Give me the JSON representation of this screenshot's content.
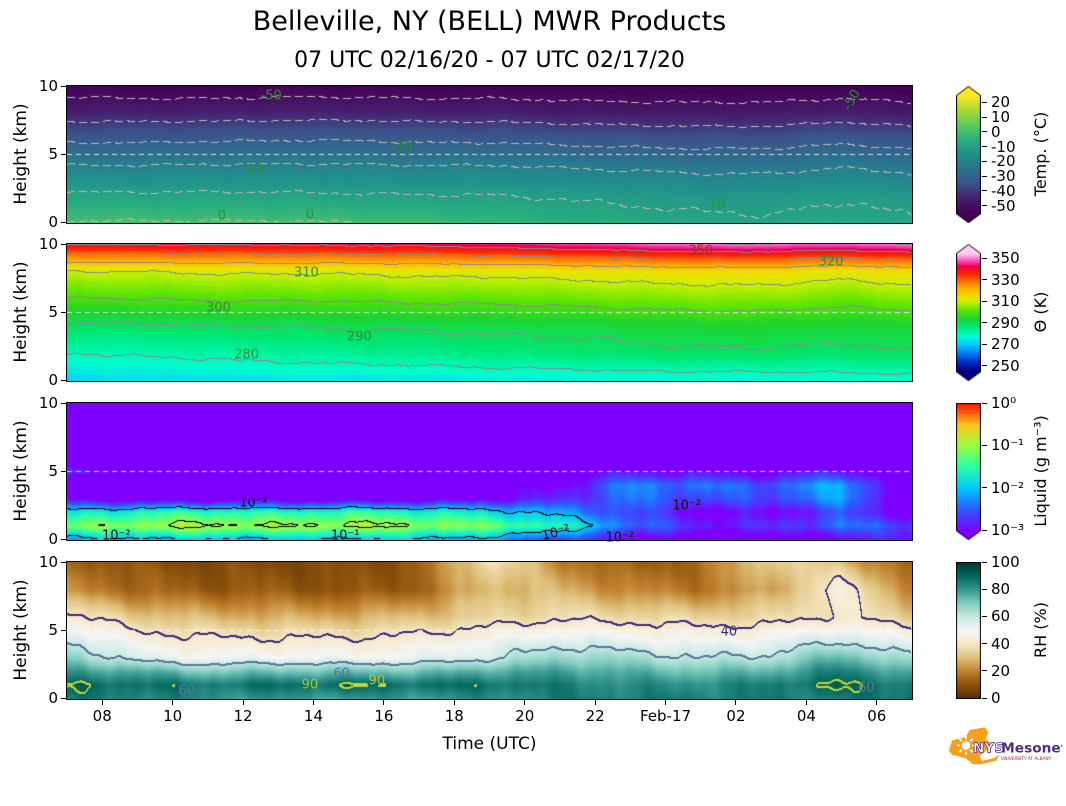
{
  "title": "Belleville, NY (BELL) MWR Products",
  "subtitle": "07 UTC 02/16/20 - 07 UTC 02/17/20",
  "xlabel": "Time (UTC)",
  "ylabel": "Height (km)",
  "logo": {
    "nys": "NYS",
    "mesonet": "Mesonet",
    "sub": "UNIVERSITY AT ALBANY"
  },
  "axis": {
    "hour_start": 7,
    "hour_end": 31,
    "yticks": [
      {
        "v": 0,
        "label": "0"
      },
      {
        "v": 5,
        "label": "5"
      },
      {
        "v": 10,
        "label": "10"
      }
    ],
    "xticks": [
      {
        "hour": 8,
        "label": "08"
      },
      {
        "hour": 10,
        "label": "10"
      },
      {
        "hour": 12,
        "label": "12"
      },
      {
        "hour": 14,
        "label": "14"
      },
      {
        "hour": 16,
        "label": "16"
      },
      {
        "hour": 18,
        "label": "18"
      },
      {
        "hour": 20,
        "label": "20"
      },
      {
        "hour": 22,
        "label": "22"
      },
      {
        "hour": 24,
        "label": "Feb-17"
      },
      {
        "hour": 26,
        "label": "02"
      },
      {
        "hour": 28,
        "label": "04"
      },
      {
        "hour": 30,
        "label": "06"
      }
    ]
  },
  "chart_data": [
    {
      "name": "temperature",
      "type": "heatmap",
      "vmin": -55,
      "vmax": 25,
      "colormap": "viridis",
      "dashed_height_km": 5,
      "colorbar": {
        "label": "Temp. (°C)",
        "extend_top": true,
        "extend_bottom": true,
        "ticks": [
          {
            "v": 20,
            "label": "20"
          },
          {
            "v": 10,
            "label": "10"
          },
          {
            "v": 0,
            "label": "0"
          },
          {
            "v": -10,
            "label": "-10"
          },
          {
            "v": -20,
            "label": "-20"
          },
          {
            "v": -30,
            "label": "-30"
          },
          {
            "v": -40,
            "label": "-40"
          },
          {
            "v": -50,
            "label": "-50"
          }
        ]
      },
      "grid": {
        "hours": [
          7,
          9,
          11,
          13,
          15,
          17,
          19,
          21,
          23,
          25,
          27,
          29,
          31
        ],
        "heights": [
          0,
          2,
          4,
          6,
          8,
          10
        ],
        "values": [
          [
            0.5,
            0.5,
            0.5,
            0.5,
            0,
            -1,
            -3,
            -5,
            -7,
            -8,
            -9,
            -7,
            -9
          ],
          [
            -9,
            -9,
            -9,
            -9,
            -9.5,
            -10,
            -10,
            -11,
            -12,
            -13,
            -13,
            -11,
            -13
          ],
          [
            -19,
            -19,
            -18.5,
            -18.5,
            -18.5,
            -19,
            -19,
            -20,
            -21,
            -22,
            -22,
            -20,
            -22
          ],
          [
            -31,
            -31,
            -30.5,
            -30,
            -30,
            -31,
            -31,
            -32,
            -33,
            -33.5,
            -33.5,
            -31.5,
            -33.5
          ],
          [
            -44,
            -44,
            -44,
            -43.5,
            -43.5,
            -44,
            -44,
            -45,
            -45.5,
            -46,
            -46,
            -44,
            -46
          ],
          [
            -54,
            -55,
            -55,
            -54.5,
            -54.5,
            -55,
            -55,
            -55.5,
            -56,
            -56,
            -56,
            -55,
            -56
          ]
        ]
      },
      "contours": [
        {
          "level": 0,
          "color": "#c4b8b4",
          "dash": true
        },
        {
          "level": -10,
          "color": "#c4b8b4",
          "dash": true
        },
        {
          "level": -20,
          "color": "#c4b8b4",
          "dash": true
        },
        {
          "level": -30,
          "color": "#c4b8b4",
          "dash": true
        },
        {
          "level": -40,
          "color": "#c4b8b4",
          "dash": true
        },
        {
          "level": -50,
          "color": "#c4b8b4",
          "dash": true
        }
      ],
      "contour_label_color": "#2f8f2f",
      "annotations": [
        {
          "hour": 12.8,
          "km": 9.3,
          "text": "-50"
        },
        {
          "hour": 29.3,
          "km": 9.0,
          "text": "-50",
          "rot": -60
        },
        {
          "hour": 16.5,
          "km": 5.5,
          "text": "-30"
        },
        {
          "hour": 12.3,
          "km": 3.9,
          "text": "-20"
        },
        {
          "hour": 25.4,
          "km": 1.3,
          "text": "-10"
        },
        {
          "hour": 11.4,
          "km": 0.5,
          "text": "0"
        },
        {
          "hour": 13.9,
          "km": 0.6,
          "text": "0"
        }
      ]
    },
    {
      "name": "potential-temperature",
      "type": "heatmap",
      "vmin": 245,
      "vmax": 355,
      "colormap": "theta",
      "dashed_height_km": 5,
      "colorbar": {
        "label": "Θ (K)",
        "extend_top": true,
        "extend_bottom": true,
        "ticks": [
          {
            "v": 350,
            "label": "350"
          },
          {
            "v": 330,
            "label": "330"
          },
          {
            "v": 310,
            "label": "310"
          },
          {
            "v": 290,
            "label": "290"
          },
          {
            "v": 270,
            "label": "270"
          },
          {
            "v": 250,
            "label": "250"
          }
        ]
      },
      "grid": {
        "hours": [
          7,
          9,
          11,
          13,
          15,
          17,
          19,
          21,
          23,
          25,
          27,
          29,
          31
        ],
        "heights": [
          0,
          2,
          4,
          6,
          8,
          10
        ],
        "values": [
          [
            272,
            273,
            273,
            274,
            274,
            274,
            275,
            275,
            276,
            276,
            276,
            277,
            277
          ],
          [
            280,
            281,
            282,
            283,
            284,
            285,
            286,
            287,
            288,
            289,
            289,
            288,
            290
          ],
          [
            289,
            289,
            290,
            290,
            291,
            291,
            292,
            292,
            293,
            294,
            294,
            293,
            294
          ],
          [
            300,
            300,
            301,
            301,
            301,
            302,
            302,
            303,
            304,
            305,
            305,
            303,
            305
          ],
          [
            310,
            310,
            311,
            311,
            311,
            312,
            312,
            313,
            314,
            315,
            315,
            313,
            315
          ],
          [
            340,
            341,
            341,
            341,
            342,
            342,
            344,
            346,
            348,
            350,
            350,
            348,
            351
          ]
        ]
      },
      "contours": [
        {
          "level": 280,
          "color": "#8a8a8a"
        },
        {
          "level": 290,
          "color": "#8a8a8a"
        },
        {
          "level": 300,
          "color": "#8a8a8a"
        },
        {
          "level": 310,
          "color": "#8a8a8a"
        },
        {
          "level": 320,
          "color": "#8a8a8a"
        },
        {
          "level": 330,
          "color": "#8a8a8a"
        },
        {
          "level": 340,
          "color": "#8a8a8a"
        },
        {
          "level": 350,
          "color": "#8a8a8a"
        }
      ],
      "contour_label_color": "#2f8f2f",
      "annotations": [
        {
          "hour": 13.8,
          "km": 7.9,
          "text": "310"
        },
        {
          "hour": 11.3,
          "km": 5.3,
          "text": "300"
        },
        {
          "hour": 15.3,
          "km": 3.2,
          "text": "290"
        },
        {
          "hour": 12.1,
          "km": 1.9,
          "text": "280"
        },
        {
          "hour": 28.7,
          "km": 8.7,
          "text": "320"
        },
        {
          "hour": 25.0,
          "km": 9.5,
          "text": "350",
          "color": "#a03020"
        }
      ]
    },
    {
      "name": "liquid",
      "type": "heatmap",
      "scale": "log10",
      "units": "log10(g m-3)",
      "vmin": -3,
      "vmax": 0,
      "colormap": "rainbow",
      "dashed_height_km": 5,
      "colorbar": {
        "label": "Liquid (g m⁻³)",
        "extend_top": false,
        "extend_bottom": true,
        "ticks": [
          {
            "v": 0,
            "label": "10⁰"
          },
          {
            "v": -1,
            "label": "10⁻¹"
          },
          {
            "v": -2,
            "label": "10⁻²"
          },
          {
            "v": -3,
            "label": "10⁻³"
          }
        ]
      },
      "grid": {
        "hours": [
          7,
          9,
          11,
          13,
          15,
          17,
          19,
          21,
          23,
          25,
          27,
          29,
          31
        ],
        "heights": [
          0,
          1,
          2,
          3,
          4,
          5,
          6,
          10
        ],
        "values": [
          [
            -2.2,
            -2.0,
            -2.0,
            -2.0,
            -2.0,
            -2.0,
            -2.2,
            -2.6,
            -3.0,
            -3.2,
            -3.2,
            -3.0,
            -2.8
          ],
          [
            -1.2,
            -1.0,
            -0.9,
            -1.0,
            -0.9,
            -1.0,
            -1.2,
            -1.6,
            -2.4,
            -2.8,
            -2.8,
            -2.4,
            -2.6
          ],
          [
            -1.8,
            -1.6,
            -1.5,
            -1.6,
            -1.5,
            -1.6,
            -1.8,
            -2.2,
            -2.6,
            -3.0,
            -3.0,
            -2.6,
            -3.1
          ],
          [
            -3.0,
            -3.2,
            -3.2,
            -3.2,
            -3.2,
            -3.2,
            -3.0,
            -2.8,
            -2.4,
            -2.6,
            -2.6,
            -2.2,
            -3.2
          ],
          [
            -3.3,
            -3.4,
            -3.4,
            -3.4,
            -3.4,
            -3.4,
            -3.3,
            -3.0,
            -2.3,
            -2.4,
            -2.5,
            -2.1,
            -3.3
          ],
          [
            -2.6,
            -3.4,
            -3.4,
            -3.4,
            -3.4,
            -3.4,
            -3.4,
            -3.3,
            -2.9,
            -3.0,
            -3.1,
            -2.8,
            -3.4
          ],
          [
            -3.2,
            -3.5,
            -3.5,
            -3.5,
            -3.5,
            -3.5,
            -3.5,
            -3.5,
            -3.4,
            -3.4,
            -3.4,
            -3.3,
            -3.5
          ],
          [
            -3.5,
            -3.5,
            -3.5,
            -3.5,
            -3.5,
            -3.5,
            -3.5,
            -3.5,
            -3.5,
            -3.5,
            -3.5,
            -3.5,
            -3.5
          ]
        ]
      },
      "contours": [
        {
          "level": -2,
          "color": "#000000"
        },
        {
          "level": -1,
          "color": "#000000"
        }
      ],
      "contour_label_color": "#111111",
      "annotations": [
        {
          "hour": 8.4,
          "km": 0.3,
          "text": "10⁻²"
        },
        {
          "hour": 12.3,
          "km": 2.7,
          "text": "10⁻²"
        },
        {
          "hour": 14.9,
          "km": 0.3,
          "text": "10⁻¹"
        },
        {
          "hour": 20.9,
          "km": 0.5,
          "text": "10⁻²",
          "rot": -15
        },
        {
          "hour": 22.7,
          "km": 0.15,
          "text": "10⁻²"
        },
        {
          "hour": 24.6,
          "km": 2.5,
          "text": "10⁻²"
        }
      ]
    },
    {
      "name": "relative-humidity",
      "type": "heatmap",
      "vmin": 0,
      "vmax": 100,
      "colormap": "brbg",
      "dashed_height_km": 5,
      "colorbar": {
        "label": "RH (%)",
        "extend_top": false,
        "extend_bottom": false,
        "ticks": [
          {
            "v": 100,
            "label": "100"
          },
          {
            "v": 80,
            "label": "80"
          },
          {
            "v": 60,
            "label": "60"
          },
          {
            "v": 40,
            "label": "40"
          },
          {
            "v": 20,
            "label": "20"
          },
          {
            "v": 0,
            "label": "0"
          }
        ]
      },
      "grid": {
        "hours": [
          7,
          9,
          11,
          13,
          15,
          17,
          19,
          21,
          23,
          25,
          27,
          29,
          31
        ],
        "heights": [
          0,
          1,
          2,
          3,
          4,
          6,
          8,
          10
        ],
        "values": [
          [
            85,
            85,
            82,
            80,
            80,
            80,
            82,
            85,
            85,
            85,
            85,
            85,
            88
          ],
          [
            90,
            88,
            86,
            88,
            90,
            88,
            88,
            85,
            82,
            82,
            85,
            91,
            85
          ],
          [
            80,
            76,
            70,
            72,
            72,
            72,
            76,
            78,
            75,
            72,
            75,
            85,
            75
          ],
          [
            70,
            55,
            50,
            52,
            50,
            52,
            58,
            68,
            65,
            60,
            62,
            75,
            62
          ],
          [
            62,
            48,
            44,
            44,
            44,
            46,
            52,
            58,
            55,
            52,
            54,
            62,
            52
          ],
          [
            42,
            32,
            28,
            27,
            27,
            30,
            34,
            38,
            36,
            34,
            35,
            42,
            32
          ],
          [
            22,
            15,
            12,
            12,
            10,
            14,
            30,
            28,
            20,
            18,
            25,
            45,
            20
          ],
          [
            15,
            10,
            8,
            8,
            8,
            12,
            40,
            20,
            12,
            15,
            35,
            30,
            12
          ]
        ]
      },
      "contours": [
        {
          "level": 40,
          "color": "#3b2c80",
          "width": 2
        },
        {
          "level": 60,
          "color": "#56789b",
          "width": 2
        },
        {
          "level": 90,
          "color": "#c3d32f",
          "width": 2
        }
      ],
      "contour_label_color": "#111111",
      "annotations": [
        {
          "hour": 10.4,
          "km": 0.6,
          "text": "60",
          "color": "#56789b"
        },
        {
          "hour": 13.9,
          "km": 1.0,
          "text": "90",
          "color": "#b3c32a"
        },
        {
          "hour": 15.8,
          "km": 1.3,
          "text": "90",
          "color": "#b3c32a"
        },
        {
          "hour": 14.8,
          "km": 1.8,
          "text": "60",
          "color": "#56789b"
        },
        {
          "hour": 25.8,
          "km": 4.9,
          "text": "40",
          "color": "#3b2c80"
        },
        {
          "hour": 29.7,
          "km": 0.8,
          "text": "60",
          "color": "#56789b"
        }
      ]
    }
  ]
}
